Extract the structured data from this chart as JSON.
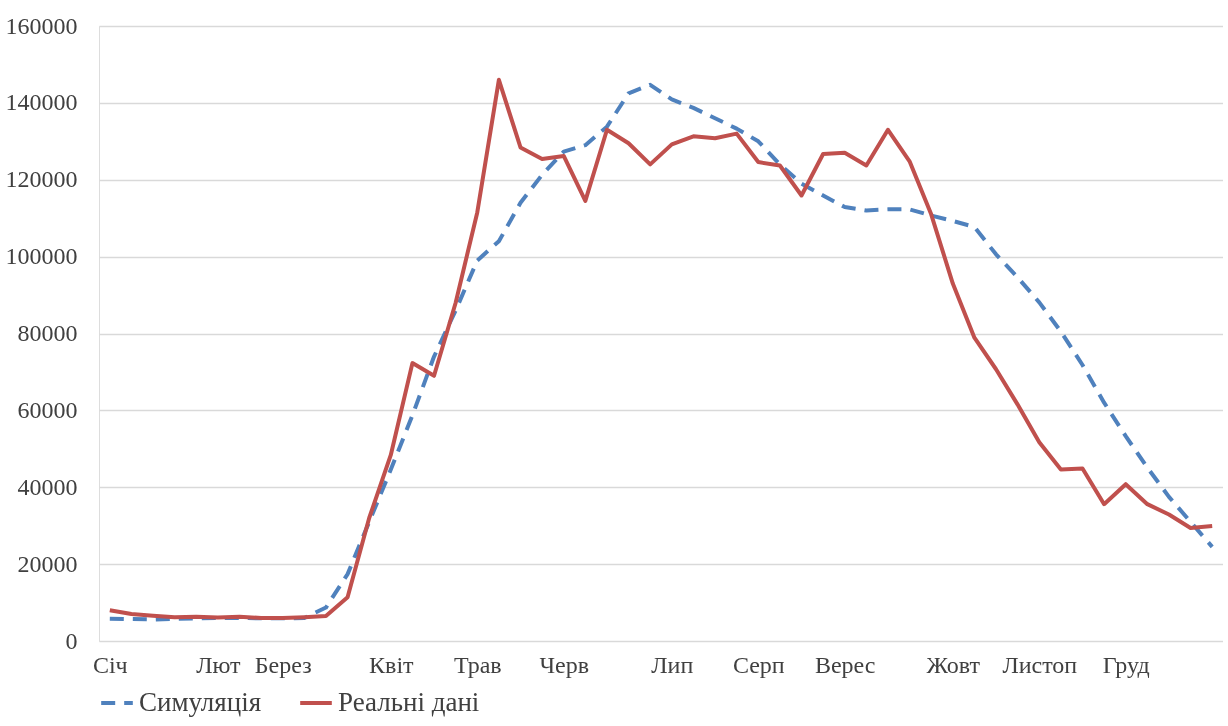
{
  "chart_data": {
    "type": "line",
    "categories": [
      "Січ",
      null,
      null,
      null,
      null,
      "Лют",
      null,
      null,
      "Берез",
      null,
      null,
      null,
      null,
      "Квіт",
      null,
      null,
      null,
      "Трав",
      null,
      null,
      null,
      "Черв",
      null,
      null,
      null,
      null,
      "Лип",
      null,
      null,
      null,
      "Серп",
      null,
      null,
      null,
      "Верес",
      null,
      null,
      null,
      null,
      "Жовт",
      null,
      null,
      null,
      "Листоп",
      null,
      null,
      null,
      "Груд",
      null,
      null,
      null,
      null
    ],
    "series": [
      {
        "name": "Симуляція",
        "color": "#4f81bd",
        "line_style": "dashed",
        "values": [
          5800,
          5700,
          5600,
          5800,
          5900,
          6000,
          6000,
          5900,
          5900,
          6000,
          8700,
          17400,
          31000,
          44600,
          58700,
          74000,
          86000,
          99000,
          104000,
          114000,
          121300,
          127300,
          129000,
          133800,
          142500,
          144700,
          140900,
          138700,
          136000,
          133300,
          130000,
          124000,
          119000,
          115900,
          112900,
          112000,
          112300,
          112300,
          110700,
          109300,
          107700,
          100600,
          94600,
          88100,
          80500,
          71800,
          62000,
          53300,
          45100,
          37500,
          31000,
          24500
        ]
      },
      {
        "name": "Реальні дані",
        "color": "#c0504d",
        "line_style": "solid",
        "values": [
          8000,
          7000,
          6600,
          6200,
          6300,
          6100,
          6300,
          6000,
          6000,
          6200,
          6500,
          11400,
          32000,
          48400,
          72300,
          69000,
          88000,
          111500,
          146000,
          128400,
          125400,
          126200,
          114500,
          133000,
          129500,
          124000,
          129200,
          131300,
          130800,
          132000,
          124600,
          123700,
          115900,
          126700,
          127000,
          123700,
          133000,
          124800,
          111000,
          93000,
          78900,
          70700,
          61500,
          51700,
          44600,
          44900,
          35600,
          40800,
          35600,
          32900,
          29400,
          29900
        ]
      }
    ],
    "ylim": [
      0,
      160000
    ],
    "yticks": [
      0,
      20000,
      40000,
      60000,
      80000,
      100000,
      120000,
      140000,
      160000
    ],
    "grid": "y",
    "legend": "bottom",
    "marker": "none"
  }
}
